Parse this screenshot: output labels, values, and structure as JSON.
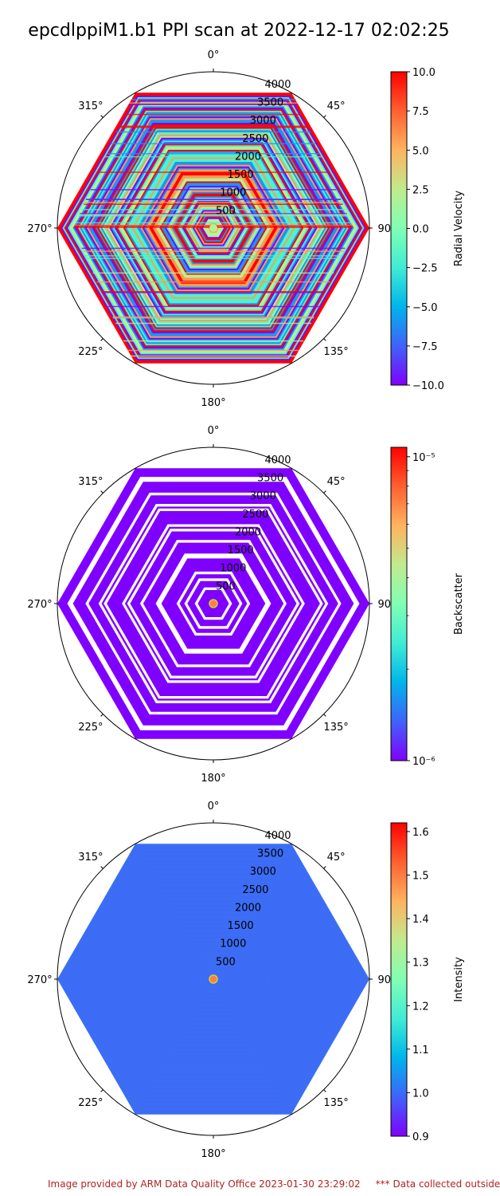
{
  "figure": {
    "title": "epcdlppiM1.b1 PPI scan at 2022-12-17 02:02:25",
    "footer": "Image provided by ARM Data Quality Office 2023-01-30 23:29:02     *** Data collected outside"
  },
  "chart_data": [
    {
      "type": "heatmap",
      "projection": "polar",
      "title": "",
      "angle_ticks": [
        "0°",
        "45°",
        "90°",
        "135°",
        "180°",
        "225°",
        "270°",
        "315°"
      ],
      "radial_ticks": [
        500,
        1000,
        1500,
        2000,
        2500,
        3000,
        3500,
        4000
      ],
      "rlim": [
        0,
        4000
      ],
      "colorbar": {
        "label": "Radial Velocity",
        "scale": "linear",
        "range": [
          -10.0,
          10.0
        ],
        "ticks": [
          "10.0",
          "7.5",
          "5.0",
          "2.5",
          "0.0",
          "−2.5",
          "−5.0",
          "−7.5",
          "−10.0"
        ]
      },
      "colors": [
        "#7f00ff",
        "#1996f3",
        "#4df3ce",
        "#b3f396",
        "#ff9b50",
        "#ff0000"
      ]
    },
    {
      "type": "heatmap",
      "projection": "polar",
      "title": "",
      "angle_ticks": [
        "0°",
        "45°",
        "90°",
        "135°",
        "180°",
        "225°",
        "270°",
        "315°"
      ],
      "radial_ticks": [
        500,
        1000,
        1500,
        2000,
        2500,
        3000,
        3500,
        4000
      ],
      "rlim": [
        0,
        4000
      ],
      "colorbar": {
        "label": "Backscatter",
        "scale": "log",
        "range": [
          1e-06,
          1e-05
        ],
        "ticks": [
          "10⁻⁵",
          "10⁻⁶"
        ]
      },
      "colors": [
        "#7f00ff",
        "#ff0000"
      ]
    },
    {
      "type": "heatmap",
      "projection": "polar",
      "title": "",
      "angle_ticks": [
        "0°",
        "45°",
        "90°",
        "135°",
        "180°",
        "225°",
        "270°",
        "315°"
      ],
      "radial_ticks": [
        500,
        1000,
        1500,
        2000,
        2500,
        3000,
        3500,
        4000
      ],
      "rlim": [
        0,
        4000
      ],
      "colorbar": {
        "label": "Intensity",
        "scale": "linear",
        "range": [
          0.9,
          1.62
        ],
        "ticks": [
          "1.6",
          "1.5",
          "1.4",
          "1.3",
          "1.2",
          "1.1",
          "1.0",
          "0.9"
        ]
      },
      "colors": [
        "#3a6ff5",
        "#ff7f3f"
      ]
    }
  ]
}
